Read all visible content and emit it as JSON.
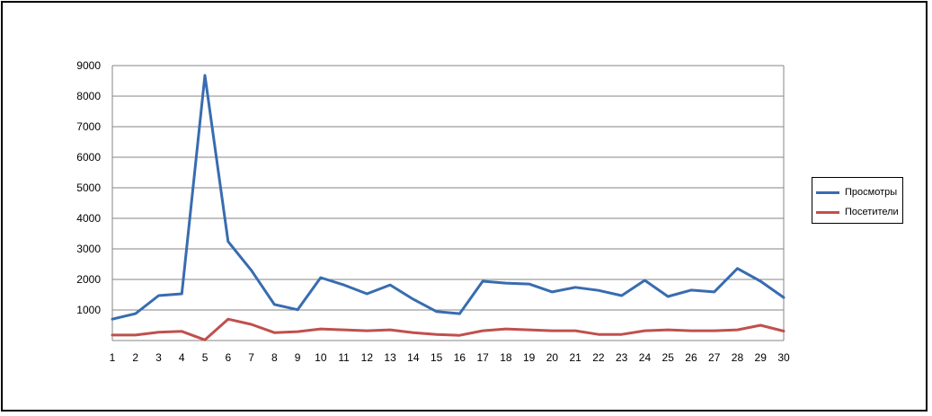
{
  "chart_data": {
    "type": "line",
    "title": "",
    "xlabel": "",
    "ylabel": "",
    "x": [
      1,
      2,
      3,
      4,
      5,
      6,
      7,
      8,
      9,
      10,
      11,
      12,
      13,
      14,
      15,
      16,
      17,
      18,
      19,
      20,
      21,
      22,
      23,
      24,
      25,
      26,
      27,
      28,
      29,
      30
    ],
    "ylim": [
      0,
      9000
    ],
    "yticks": [
      1000,
      2000,
      3000,
      4000,
      5000,
      6000,
      7000,
      8000,
      9000
    ],
    "grid": true,
    "legend_position": "right",
    "series": [
      {
        "name": "Просмотры",
        "color": "#386CB0",
        "values": [
          700,
          880,
          1470,
          1530,
          8680,
          3240,
          2300,
          1180,
          1010,
          2060,
          1820,
          1530,
          1820,
          1350,
          950,
          880,
          1940,
          1880,
          1850,
          1590,
          1740,
          1640,
          1470,
          1970,
          1440,
          1650,
          1590,
          2360,
          1940,
          1410
        ]
      },
      {
        "name": "Посетители",
        "color": "#C0504D",
        "values": [
          180,
          180,
          270,
          300,
          20,
          700,
          530,
          260,
          290,
          380,
          350,
          320,
          350,
          260,
          200,
          170,
          320,
          380,
          350,
          320,
          320,
          200,
          200,
          320,
          350,
          320,
          320,
          350,
          500,
          310
        ]
      }
    ]
  }
}
